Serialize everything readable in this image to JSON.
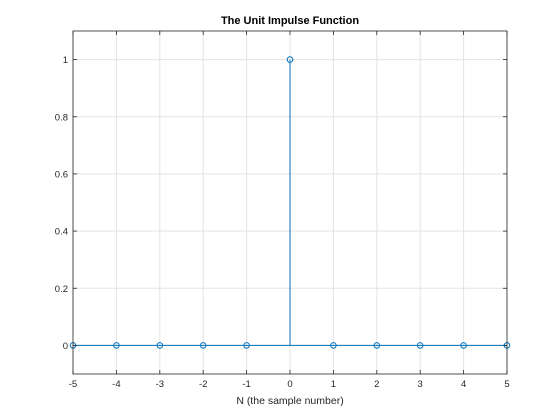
{
  "chart_data": {
    "type": "stem",
    "title": "The Unit Impulse Function",
    "xlabel": "N (the sample number)",
    "ylabel": "",
    "xlim": [
      -5,
      5
    ],
    "ylim": [
      -0.1,
      1.1
    ],
    "xticks": [
      -5,
      -4,
      -3,
      -2,
      -1,
      0,
      1,
      2,
      3,
      4,
      5
    ],
    "yticks": [
      0,
      0.2,
      0.4,
      0.6,
      0.8,
      1
    ],
    "xtick_labels": [
      "-5",
      "-4",
      "-3",
      "-2",
      "-1",
      "0",
      "1",
      "2",
      "3",
      "4",
      "5"
    ],
    "ytick_labels": [
      "0",
      "0.2",
      "0.4",
      "0.6",
      "0.8",
      "1"
    ],
    "grid": true,
    "baseline": 0,
    "series": [
      {
        "x": [
          -5,
          -4,
          -3,
          -2,
          -1,
          0,
          1,
          2,
          3,
          4,
          5
        ],
        "y": [
          0,
          0,
          0,
          0,
          0,
          1,
          0,
          0,
          0,
          0,
          0
        ],
        "color": "#0072BD",
        "marker": "open-circle"
      }
    ]
  },
  "colors": {
    "axis": "#262626",
    "grid": "#e3e3e3",
    "series": "#0072BD"
  }
}
